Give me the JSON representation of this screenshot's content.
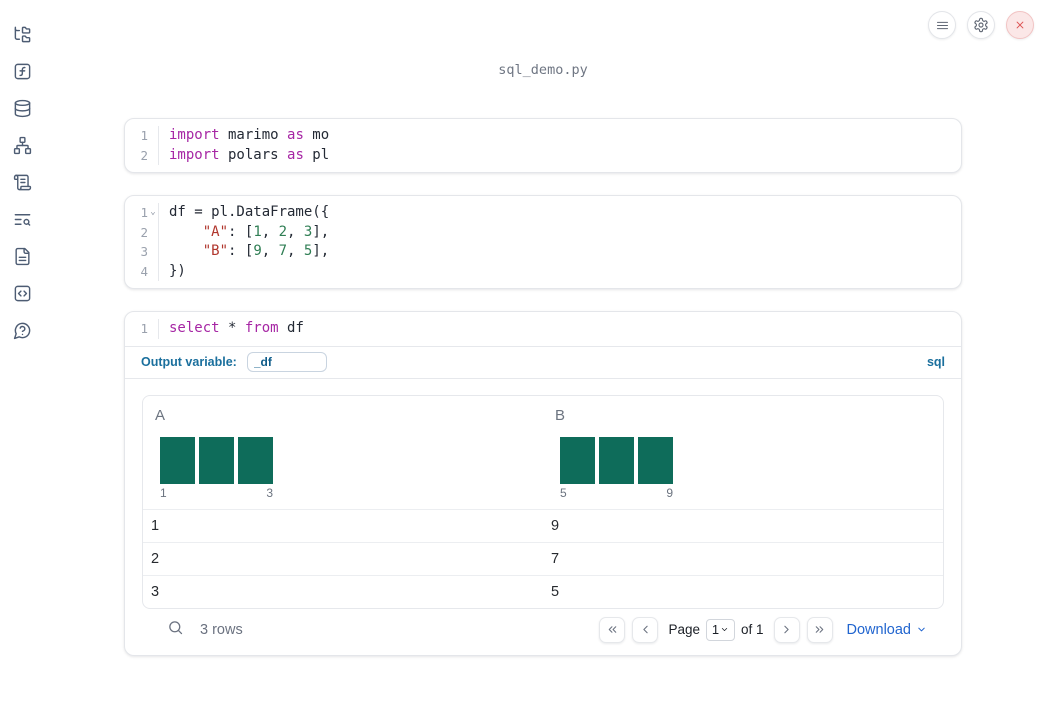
{
  "app": {
    "filename": "sql_demo.py"
  },
  "sidebar": {
    "icons": [
      "file-explorer-icon",
      "variables-icon",
      "data-sources-icon",
      "dependency-graph-icon",
      "logs-icon",
      "outline-search-icon",
      "documentation-icon",
      "snippets-icon",
      "help-icon"
    ]
  },
  "toolbar": {
    "icons": [
      "menu-icon",
      "settings-gear-icon",
      "shutdown-close-icon"
    ]
  },
  "colors": {
    "accent_blue": "#1a6f9d",
    "link_blue": "#2165cf",
    "histogram_green": "#0e6c5a",
    "keyword_purple": "#a626a4",
    "string_red": "#b0352c",
    "number_green": "#2f7e54",
    "close_red": "#dd5252"
  },
  "cells": [
    {
      "id": "imports",
      "lines": [
        {
          "n": "1",
          "tokens": [
            [
              "kw",
              "import"
            ],
            [
              "pl",
              " marimo "
            ],
            [
              "kw",
              "as"
            ],
            [
              "pl",
              " mo"
            ]
          ]
        },
        {
          "n": "2",
          "tokens": [
            [
              "kw",
              "import"
            ],
            [
              "pl",
              " polars "
            ],
            [
              "kw",
              "as"
            ],
            [
              "pl",
              " pl"
            ]
          ]
        }
      ]
    },
    {
      "id": "dataframe",
      "lines": [
        {
          "n": "1",
          "fold": true,
          "tokens": [
            [
              "pl",
              "df = pl.DataFrame({"
            ]
          ]
        },
        {
          "n": "2",
          "tokens": [
            [
              "pl",
              "    "
            ],
            [
              "str",
              "\"A\""
            ],
            [
              "pl",
              ": ["
            ],
            [
              "num",
              "1"
            ],
            [
              "pl",
              ", "
            ],
            [
              "num",
              "2"
            ],
            [
              "pl",
              ", "
            ],
            [
              "num",
              "3"
            ],
            [
              "pl",
              "],"
            ]
          ]
        },
        {
          "n": "3",
          "tokens": [
            [
              "pl",
              "    "
            ],
            [
              "str",
              "\"B\""
            ],
            [
              "pl",
              ": ["
            ],
            [
              "num",
              "9"
            ],
            [
              "pl",
              ", "
            ],
            [
              "num",
              "7"
            ],
            [
              "pl",
              ", "
            ],
            [
              "num",
              "5"
            ],
            [
              "pl",
              "],"
            ]
          ]
        },
        {
          "n": "4",
          "tokens": [
            [
              "pl",
              "})"
            ]
          ]
        }
      ]
    },
    {
      "id": "sql-query",
      "lines": [
        {
          "n": "1",
          "tokens": [
            [
              "kw",
              "select"
            ],
            [
              "pl",
              " * "
            ],
            [
              "kw",
              "from"
            ],
            [
              "pl",
              " df"
            ]
          ]
        }
      ]
    }
  ],
  "sql_cell": {
    "output_variable_label": "Output variable:",
    "output_variable_value": "_df",
    "language_badge": "sql"
  },
  "table": {
    "columns": [
      {
        "label": "A",
        "histogram": {
          "bars": [
            1,
            1,
            1
          ],
          "tick_min": "1",
          "tick_max": "3"
        }
      },
      {
        "label": "B",
        "histogram": {
          "bars": [
            1,
            1,
            1
          ],
          "tick_min": "5",
          "tick_max": "9"
        }
      }
    ],
    "rows": [
      [
        "1",
        "9"
      ],
      [
        "2",
        "7"
      ],
      [
        "3",
        "5"
      ]
    ],
    "footer": {
      "row_count": "3 rows",
      "page_label": "Page",
      "page_value": "1",
      "of_label": "of 1",
      "download_label": "Download"
    }
  }
}
